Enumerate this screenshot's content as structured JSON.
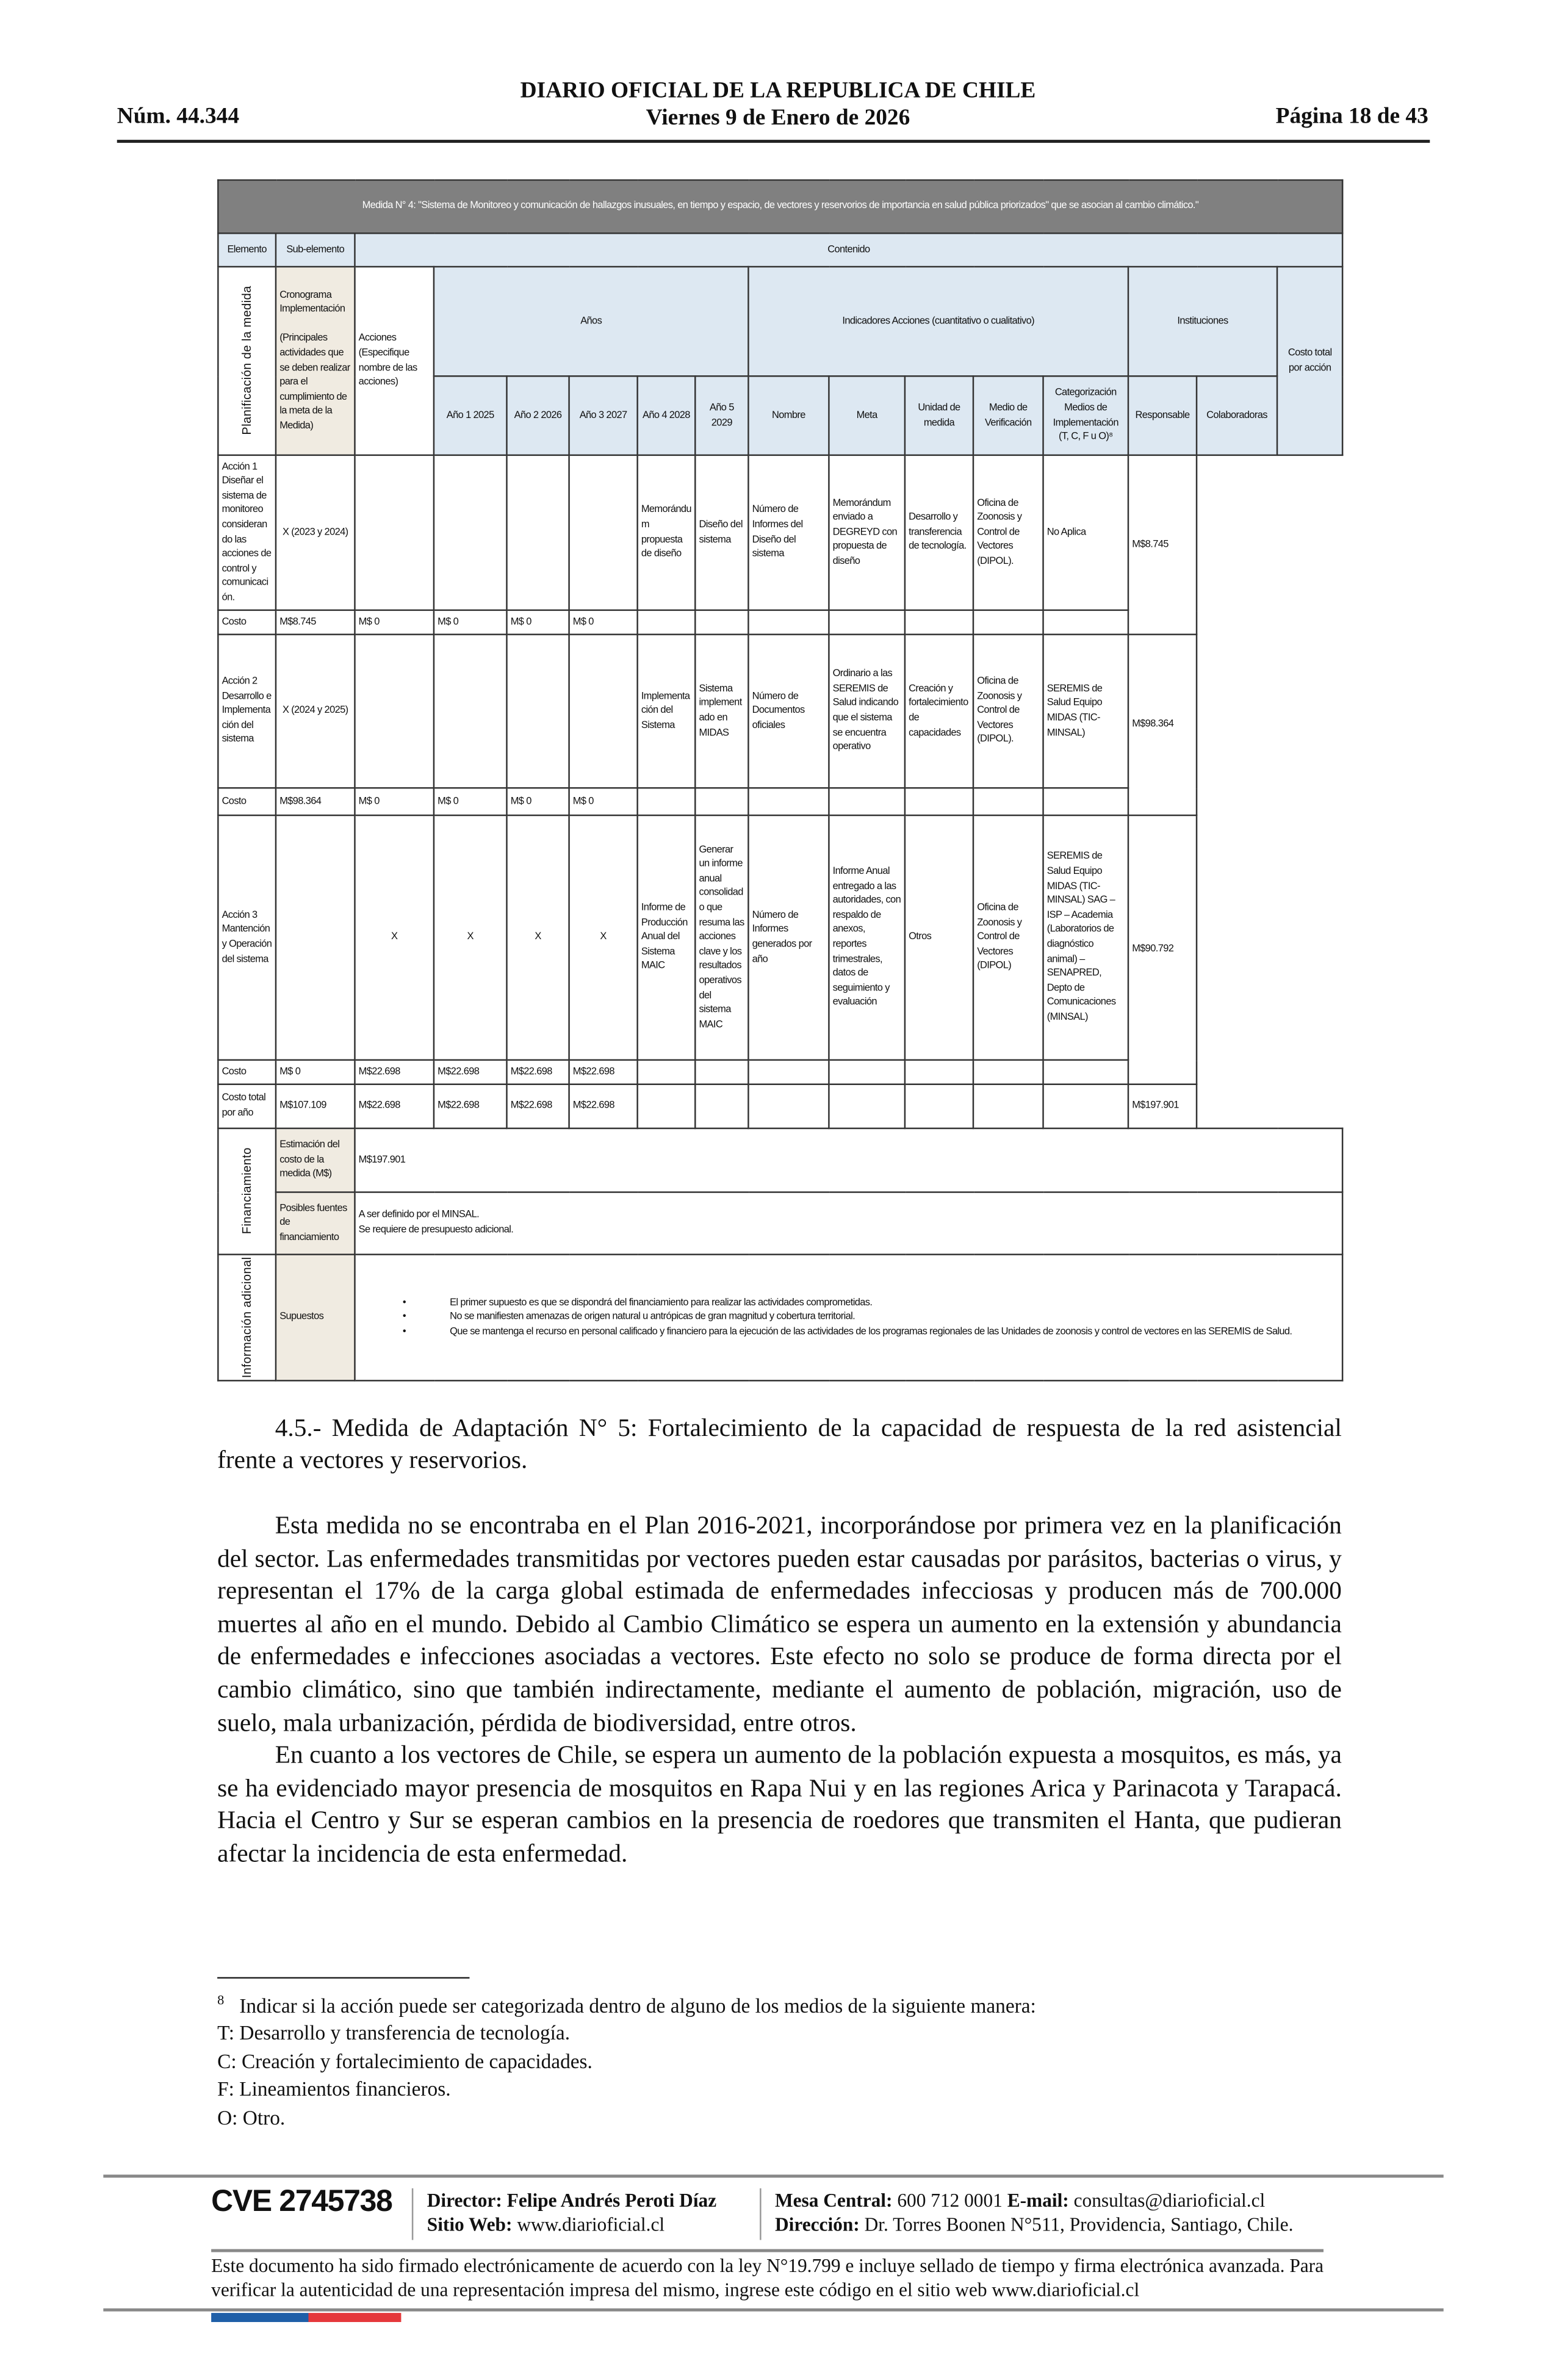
{
  "header": {
    "issue": "Núm. 44.344",
    "publication": "DIARIO OFICIAL DE LA REPUBLICA DE CHILE",
    "date": "Viernes 9 de Enero de 2026",
    "page": "Página 18 de 43"
  },
  "table": {
    "title": "Medida N° 4: \"Sistema de Monitoreo y comunicación de hallazgos inusuales, en tiempo y espacio, de vectores y reservorios de importancia en salud pública priorizados\" que se asocian al cambio climático.\"",
    "h_elemento": "Elemento",
    "h_subelemento": "Sub-elemento",
    "h_contenido": "Contenido",
    "h_acciones": "Acciones (Especifique nombre de las acciones)",
    "h_anios": "Años",
    "h_indicadores": "Indicadores Acciones (cuantitativo o cualitativo)",
    "h_instituciones": "Instituciones",
    "h_costo_total": "Costo total por acción",
    "years": [
      "Año 1 2025",
      "Año 2 2026",
      "Año 3 2027",
      "Año 4 2028",
      "Año 5 2029"
    ],
    "ind_cols": [
      "Nombre",
      "Meta",
      "Unidad de medida",
      "Medio de Verificación",
      "Categorización Medios de Implementación (T, C, F u O)⁸"
    ],
    "inst_cols": [
      "Responsable",
      "Colaboradoras"
    ],
    "el_planificacion": "Planificación de la medida",
    "sub_cronograma": "Cronograma Implementación",
    "sub_cronograma_note": "(Principales actividades que se deben realizar para el cumplimiento de la meta de la Medida)",
    "cost_label": "Costo",
    "actions": [
      {
        "label": "Acción 1 Diseñar el sistema de monitoreo considerando las acciones de control y comunicación.",
        "years": [
          "X (2023 y 2024)",
          "",
          "",
          "",
          ""
        ],
        "nombre": "Memorándum propuesta de diseño",
        "meta": "Diseño del sistema",
        "unidad": "Número de Informes del Diseño del sistema",
        "medio": "Memorándum enviado a DEGREYD con propuesta de diseño",
        "categoria": "Desarrollo y transferencia de tecnología.",
        "responsable": "Oficina de Zoonosis y Control de Vectores (DIPOL).",
        "colaboradoras": "No Aplica",
        "costo_total": "M$8.745",
        "costos": [
          "M$8.745",
          "M$ 0",
          "M$ 0",
          "M$ 0",
          "M$ 0"
        ]
      },
      {
        "label": "Acción 2 Desarrollo e Implementación del sistema",
        "years": [
          "X (2024 y 2025)",
          "",
          "",
          "",
          ""
        ],
        "nombre": "Implementación del Sistema",
        "meta": "Sistema implementado en MIDAS",
        "unidad": "Número de Documentos oficiales",
        "medio": "Ordinario a las SEREMIS de Salud indicando que el sistema se encuentra operativo",
        "categoria": "Creación y fortalecimiento de capacidades",
        "responsable": "Oficina de Zoonosis y Control de Vectores (DIPOL).",
        "colaboradoras": "SEREMIS de Salud Equipo MIDAS (TIC-MINSAL)",
        "costo_total": "M$98.364",
        "costos": [
          "M$98.364",
          "M$ 0",
          "M$ 0",
          "M$ 0",
          "M$ 0"
        ]
      },
      {
        "label": "Acción 3 Mantención y Operación del sistema",
        "years": [
          "",
          "X",
          "X",
          "X",
          "X"
        ],
        "nombre": "Informe de Producción Anual del Sistema MAIC",
        "meta": "Generar un informe anual consolidado que resuma las acciones clave y los resultados operativos del sistema MAIC",
        "unidad": "Número de Informes generados por año",
        "medio": "Informe Anual entregado a las autoridades, con respaldo de anexos, reportes trimestrales, datos de seguimiento y evaluación",
        "categoria": "Otros",
        "responsable": "Oficina de Zoonosis y Control de Vectores (DIPOL)",
        "colaboradoras": "SEREMIS de Salud Equipo MIDAS (TIC-MINSAL) SAG – ISP – Academia (Laboratorios de diagnóstico animal) – SENAPRED, Depto de Comunicaciones (MINSAL)",
        "costo_total": "M$90.792",
        "costos": [
          "M$ 0",
          "M$22.698",
          "M$22.698",
          "M$22.698",
          "M$22.698"
        ]
      }
    ],
    "total_row": {
      "label": "Costo total por año",
      "values": [
        "M$107.109",
        "M$22.698",
        "M$22.698",
        "M$22.698",
        "M$22.698"
      ],
      "total": "M$197.901"
    },
    "el_financiamiento": "Financiamiento",
    "sub_estimacion": "Estimación del costo de la medida (M$)",
    "estimacion_value": "M$197.901",
    "sub_fuentes": "Posibles fuentes de financiamiento",
    "fuentes_lines": [
      "A ser definido por el MINSAL.",
      "Se requiere de presupuesto adicional."
    ],
    "el_info": "Información adicional",
    "sub_supuestos": "Supuestos",
    "supuestos": [
      "El primer supuesto es que se dispondrá del financiamiento para realizar las actividades comprometidas.",
      "No se manifiesten amenazas de origen natural u antrópicas de gran magnitud y cobertura territorial.",
      "Que se mantenga el recurso en personal calificado y financiero para la ejecución de las actividades de los programas regionales de las Unidades de zoonosis y control de vectores en las SEREMIS de Salud."
    ]
  },
  "body": {
    "heading": "4.5.- Medida de Adaptación N° 5: Fortalecimiento de la capacidad de respuesta de la red asistencial frente a vectores y reservorios.",
    "p1": "Esta medida no se encontraba en el Plan 2016-2021, incorporándose por primera vez en la planificación del sector. Las enfermedades transmitidas por vectores pueden estar causadas por parásitos, bacterias o virus, y representan el 17% de la carga global estimada de enfermedades infecciosas y producen más de 700.000 muertes al año en el mundo. Debido al Cambio Climático se espera un aumento en la extensión y abundancia de enfermedades e infecciones asociadas a vectores. Este efecto no solo se produce de forma directa por el cambio climático, sino que también indirectamente, mediante el aumento de población, migración, uso de suelo, mala urbanización, pérdida de biodiversidad, entre otros.",
    "p2": "En cuanto a los vectores de Chile, se espera un aumento de la población expuesta a mosquitos, es más, ya se ha evidenciado mayor presencia de mosquitos en Rapa Nui y en las regiones Arica y Parinacota y Tarapacá. Hacia el Centro y Sur se esperan cambios en la presencia de roedores que transmiten el Hanta, que pudieran afectar la incidencia de esta enfermedad."
  },
  "footnote": {
    "mark": "8",
    "intro": "Indicar si la acción puede ser categorizada dentro de alguno de los medios de la siguiente manera:",
    "items": [
      "T: Desarrollo y transferencia de tecnología.",
      "C: Creación y fortalecimiento de capacidades.",
      "F: Lineamientos financieros.",
      "O: Otro."
    ]
  },
  "footer": {
    "cve": "CVE 2745738",
    "director_label": "Director:",
    "director": "Felipe Andrés Peroti Díaz",
    "web_label": "Sitio Web:",
    "web": "www.diarioficial.cl",
    "phone_label": "Mesa Central:",
    "phone": "600 712 0001",
    "email_label": "E-mail:",
    "email": "consultas@diarioficial.cl",
    "address_label": "Dirección:",
    "address": "Dr. Torres Boonen N°511, Providencia, Santiago, Chile.",
    "legal": "Este documento ha sido firmado electrónicamente de acuerdo con la ley N°19.799 e incluye sellado de tiempo y firma electrónica avanzada. Para verificar la autenticidad de una representación impresa del mismo, ingrese este código en el sitio web www.diarioficial.cl",
    "flag_colors": [
      "#1f5fa8",
      "#e5383b"
    ]
  }
}
